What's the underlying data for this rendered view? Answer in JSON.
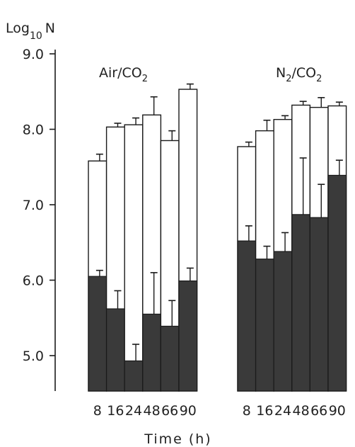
{
  "chart_data": {
    "type": "bar",
    "ylabel": "Log",
    "ylabel_base": "10",
    "ylabel_suffix": "N",
    "xlabel": "Time (h)",
    "ylim": [
      4.5,
      9.0
    ],
    "yticks": [
      "5.0",
      "6.0",
      "7.0",
      "8.0",
      "9.0"
    ],
    "ytick_values": [
      5.0,
      6.0,
      7.0,
      8.0,
      9.0
    ],
    "grid": false,
    "colors": {
      "total_fill": "#ffffff",
      "lower_fill": "#3a3a3a",
      "ink": "#1a1a1a"
    },
    "panels": [
      {
        "label": "Air/CO",
        "label_sub": "2",
        "categories": [
          "8",
          "16",
          "24",
          "48",
          "66",
          "90"
        ],
        "series": [
          {
            "values": [
              7.58,
              8.03,
              8.06,
              8.19,
              7.85,
              8.53
            ],
            "errors": [
              0.09,
              0.05,
              0.09,
              0.24,
              0.13,
              0.07
            ]
          },
          {
            "values": [
              6.05,
              5.62,
              4.93,
              5.55,
              5.39,
              5.99
            ],
            "errors": [
              0.08,
              0.24,
              0.22,
              0.55,
              0.34,
              0.17
            ]
          }
        ]
      },
      {
        "label": "N",
        "label_sub": "2",
        "label_suffix": "/CO",
        "label_sub2": "2",
        "categories": [
          "8",
          "16",
          "24",
          "48",
          "66",
          "90"
        ],
        "series": [
          {
            "values": [
              7.77,
              7.98,
              8.13,
              8.32,
              8.29,
              8.31
            ],
            "errors": [
              0.06,
              0.14,
              0.05,
              0.05,
              0.13,
              0.05
            ]
          },
          {
            "values": [
              6.52,
              6.28,
              6.38,
              6.87,
              6.83,
              7.39
            ],
            "errors": [
              0.2,
              0.17,
              0.25,
              0.75,
              0.44,
              0.2
            ]
          }
        ]
      }
    ]
  }
}
